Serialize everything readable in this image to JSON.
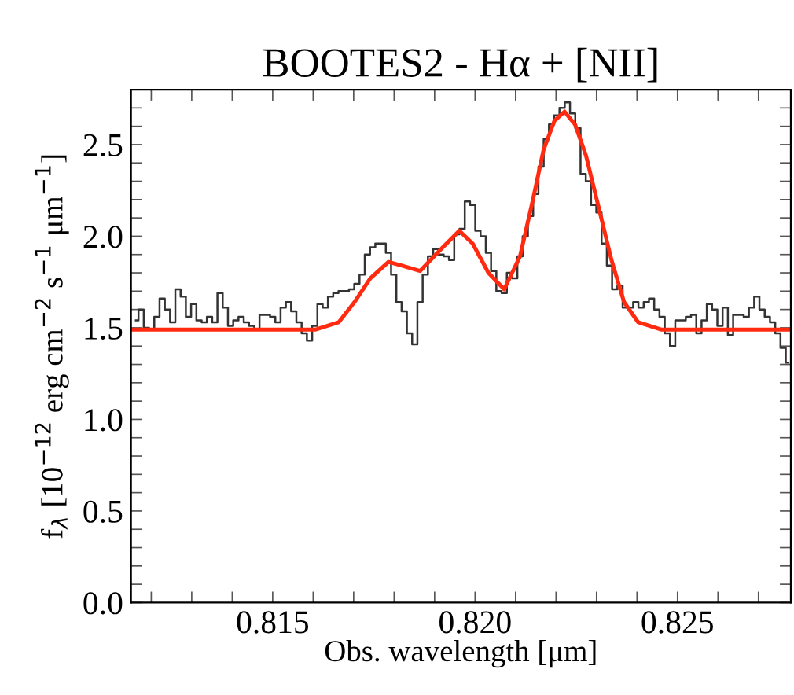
{
  "chart_data": {
    "type": "line",
    "title": "BOOTES2 - Hα + [NII]",
    "xlabel": "Obs. wavelength [μm]",
    "ylabel": "f$_{λ}$ [10$^{−12}$ erg cm$^{−2}$ s$^{−1}$ μm$^{−1}$]",
    "xlim": [
      0.8115,
      0.8278
    ],
    "ylim": [
      0,
      2.8
    ],
    "xticks": [
      {
        "value": 0.812,
        "label": null
      },
      {
        "value": 0.813,
        "label": null
      },
      {
        "value": 0.814,
        "label": null
      },
      0.815,
      {
        "value": 0.816,
        "label": null
      },
      {
        "value": 0.817,
        "label": null
      },
      {
        "value": 0.818,
        "label": null
      },
      {
        "value": 0.819,
        "label": null
      },
      {
        "value": 0.82,
        "label": "0.820"
      },
      {
        "value": 0.821,
        "label": null
      },
      {
        "value": 0.822,
        "label": null
      },
      {
        "value": 0.823,
        "label": null
      },
      {
        "value": 0.824,
        "label": null
      },
      0.825,
      {
        "value": 0.826,
        "label": null
      },
      {
        "value": 0.827,
        "label": null
      }
    ],
    "yticks": [
      {
        "value": 0,
        "label": "0.0"
      },
      {
        "value": 0.1,
        "label": null
      },
      {
        "value": 0.2,
        "label": null
      },
      {
        "value": 0.3,
        "label": null
      },
      {
        "value": 0.4,
        "label": null
      },
      0.5,
      {
        "value": 0.6,
        "label": null
      },
      {
        "value": 0.7,
        "label": null
      },
      {
        "value": 0.8,
        "label": null
      },
      {
        "value": 0.9,
        "label": null
      },
      {
        "value": 1,
        "label": "1.0"
      },
      {
        "value": 1.1,
        "label": null
      },
      {
        "value": 1.2,
        "label": null
      },
      {
        "value": 1.3,
        "label": null
      },
      {
        "value": 1.4,
        "label": null
      },
      1.5,
      {
        "value": 1.6,
        "label": null
      },
      {
        "value": 1.7,
        "label": null
      },
      {
        "value": 1.8,
        "label": null
      },
      {
        "value": 1.9,
        "label": null
      },
      {
        "value": 2,
        "label": "2.0"
      },
      {
        "value": 2.1,
        "label": null
      },
      {
        "value": 2.2,
        "label": null
      },
      {
        "value": 2.3,
        "label": null
      },
      {
        "value": 2.4,
        "label": null
      },
      2.5,
      {
        "value": 2.6,
        "label": null
      },
      {
        "value": 2.7,
        "label": null
      },
      {
        "value": 2.8,
        "label": null
      }
    ],
    "grid": false,
    "series": [
      {
        "type": "step",
        "color": "#333333",
        "x": [
          0.81162,
          0.81175,
          0.81188,
          0.81201,
          0.81214,
          0.81227,
          0.8124,
          0.81253,
          0.81266,
          0.81279,
          0.81292,
          0.81305,
          0.81318,
          0.81331,
          0.81344,
          0.81357,
          0.8137,
          0.81383,
          0.81396,
          0.81409,
          0.81422,
          0.81435,
          0.81448,
          0.81461,
          0.81474,
          0.81487,
          0.815,
          0.81513,
          0.81526,
          0.81539,
          0.81552,
          0.81565,
          0.81578,
          0.81591,
          0.81604,
          0.81617,
          0.8163,
          0.81643,
          0.81656,
          0.81669,
          0.81682,
          0.81695,
          0.81708,
          0.81721,
          0.81734,
          0.81747,
          0.8176,
          0.81773,
          0.81786,
          0.81799,
          0.81812,
          0.81825,
          0.81838,
          0.81851,
          0.81864,
          0.81877,
          0.8189,
          0.81903,
          0.81916,
          0.81929,
          0.81942,
          0.81955,
          0.81968,
          0.81981,
          0.81994,
          0.82007,
          0.8202,
          0.82033,
          0.82046,
          0.82059,
          0.82072,
          0.82085,
          0.82098,
          0.82111,
          0.82124,
          0.82137,
          0.8215,
          0.82163,
          0.82176,
          0.82189,
          0.82202,
          0.82215,
          0.82228,
          0.82241,
          0.82254,
          0.82267,
          0.8228,
          0.82293,
          0.82306,
          0.82319,
          0.82332,
          0.82345,
          0.82358,
          0.82371,
          0.82384,
          0.82397,
          0.8241,
          0.82423,
          0.82436,
          0.82449,
          0.82462,
          0.82475,
          0.82488,
          0.82501,
          0.82514,
          0.82527,
          0.8254,
          0.82553,
          0.82566,
          0.82579,
          0.82592,
          0.82605,
          0.82618,
          0.82631,
          0.82644,
          0.82657,
          0.8267,
          0.82683,
          0.82696,
          0.82709,
          0.82722,
          0.82735,
          0.82748,
          0.82761,
          0.82774
        ],
        "values": [
          1.54,
          1.6,
          1.5,
          1.49,
          1.56,
          1.66,
          1.6,
          1.53,
          1.71,
          1.67,
          1.56,
          1.63,
          1.54,
          1.53,
          1.56,
          1.53,
          1.69,
          1.61,
          1.51,
          1.54,
          1.56,
          1.53,
          1.51,
          1.49,
          1.57,
          1.57,
          1.56,
          1.53,
          1.61,
          1.64,
          1.59,
          1.53,
          1.47,
          1.43,
          1.51,
          1.63,
          1.61,
          1.67,
          1.69,
          1.7,
          1.7,
          1.71,
          1.74,
          1.79,
          1.9,
          1.94,
          1.96,
          1.96,
          1.91,
          1.79,
          1.64,
          1.59,
          1.47,
          1.41,
          1.64,
          1.79,
          1.89,
          1.93,
          1.9,
          1.89,
          1.87,
          2.01,
          2.04,
          2.19,
          2.17,
          2.03,
          2.0,
          1.91,
          1.81,
          1.7,
          1.69,
          1.8,
          1.77,
          1.89,
          2.0,
          2.11,
          2.23,
          2.38,
          2.53,
          2.61,
          2.66,
          2.7,
          2.73,
          2.67,
          2.59,
          2.34,
          2.3,
          2.17,
          2.13,
          1.96,
          1.84,
          1.71,
          1.73,
          1.61,
          1.61,
          1.64,
          1.61,
          1.64,
          1.66,
          1.6,
          1.56,
          1.47,
          1.4,
          1.54,
          1.54,
          1.56,
          1.57,
          1.47,
          1.54,
          1.63,
          1.6,
          1.51,
          1.61,
          1.46,
          1.57,
          1.57,
          1.56,
          1.61,
          1.67,
          1.6,
          1.56,
          1.53,
          1.47,
          1.39,
          1.31
        ]
      },
      {
        "color": "#ff2a10",
        "x": [
          0.8115,
          0.8155,
          0.81605,
          0.81663,
          0.81702,
          0.81741,
          0.81786,
          0.81818,
          0.81864,
          0.81916,
          0.81961,
          0.81994,
          0.82033,
          0.82072,
          0.82111,
          0.82142,
          0.82169,
          0.82196,
          0.82221,
          0.82247,
          0.82274,
          0.82305,
          0.82337,
          0.82368,
          0.82403,
          0.82461,
          0.8278
        ],
        "values": [
          1.49,
          1.49,
          1.49,
          1.53,
          1.64,
          1.77,
          1.86,
          1.84,
          1.81,
          1.93,
          2.03,
          1.96,
          1.8,
          1.71,
          1.89,
          2.19,
          2.47,
          2.63,
          2.68,
          2.61,
          2.44,
          2.16,
          1.87,
          1.64,
          1.53,
          1.49,
          1.49
        ]
      }
    ]
  }
}
